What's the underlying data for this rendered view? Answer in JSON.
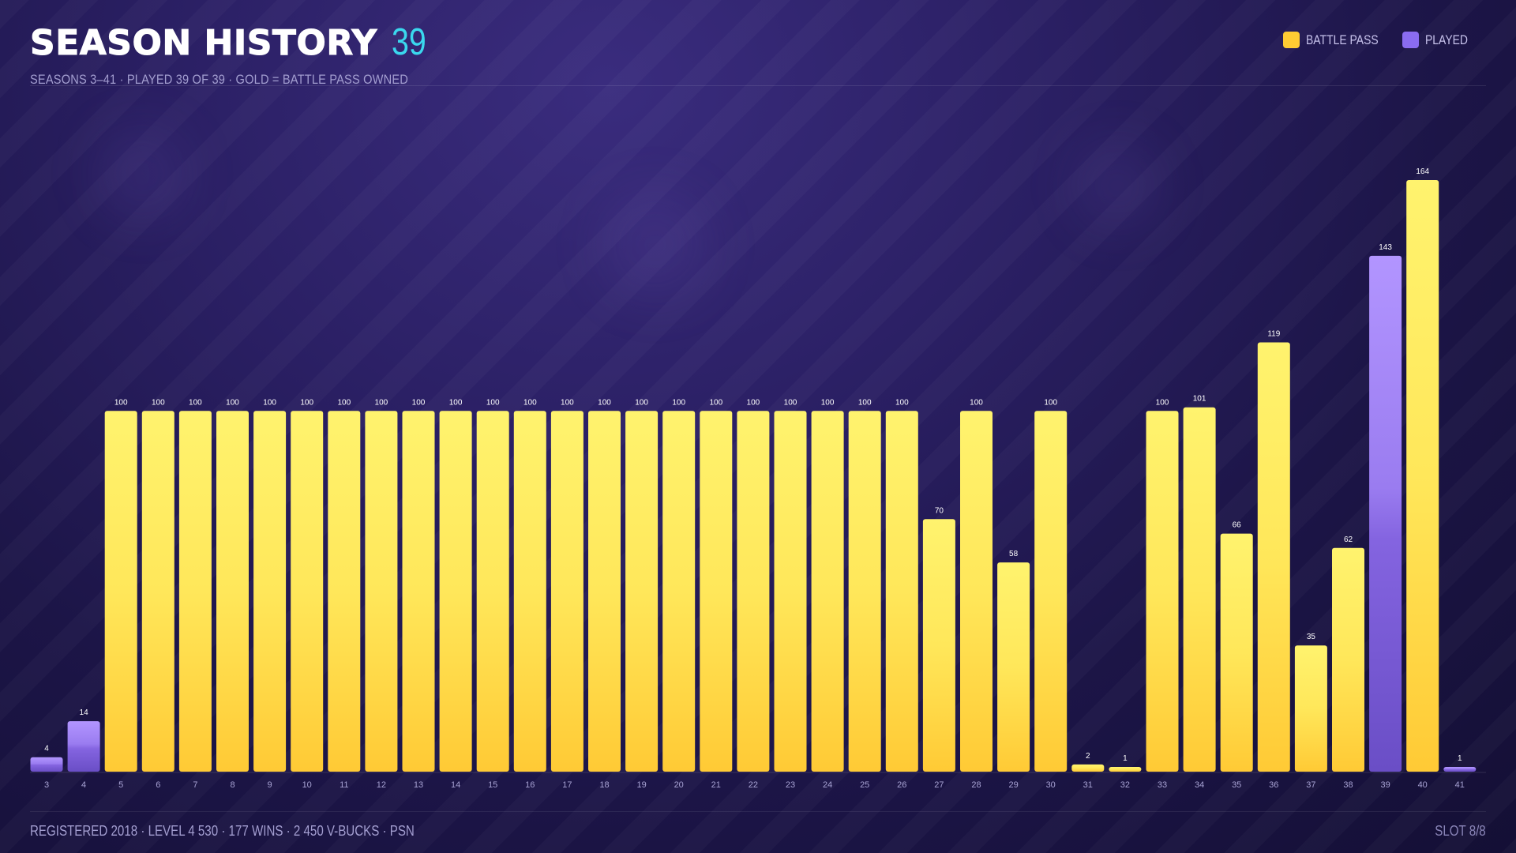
{
  "header": {
    "title": "SEASON HISTORY",
    "count": "39",
    "subtitle": "SEASONS 3–41 · PLAYED 39 OF 39 · GOLD = BATTLE PASS OWNED"
  },
  "legend": [
    {
      "label": "BATTLE PASS",
      "color": "#ffcc33"
    },
    {
      "label": "PLAYED",
      "color": "#8a6cf0"
    }
  ],
  "footer": {
    "stats": "REGISTERED 2018 · LEVEL 4 530 · 177 WINS · 2 450 V-BUCKS · PSN",
    "slot": "SLOT 8/8"
  },
  "colors": {
    "battle_pass": "#ffcc33",
    "played": "#8a6cf0",
    "accent": "#3ad8ee"
  },
  "chart_data": {
    "type": "bar",
    "categories": [
      "3",
      "4",
      "5",
      "6",
      "7",
      "8",
      "9",
      "10",
      "11",
      "12",
      "13",
      "14",
      "15",
      "16",
      "17",
      "18",
      "19",
      "20",
      "21",
      "22",
      "23",
      "24",
      "25",
      "26",
      "27",
      "28",
      "29",
      "30",
      "31",
      "32",
      "33",
      "34",
      "35",
      "36",
      "37",
      "38",
      "39",
      "40",
      "41"
    ],
    "values": [
      4,
      14,
      100,
      100,
      100,
      100,
      100,
      100,
      100,
      100,
      100,
      100,
      100,
      100,
      100,
      100,
      100,
      100,
      100,
      100,
      100,
      100,
      100,
      100,
      70,
      100,
      58,
      100,
      2,
      1,
      100,
      101,
      66,
      119,
      35,
      62,
      143,
      164,
      1
    ],
    "battle_pass": [
      false,
      false,
      true,
      true,
      true,
      true,
      true,
      true,
      true,
      true,
      true,
      true,
      true,
      true,
      true,
      true,
      true,
      true,
      true,
      true,
      true,
      true,
      true,
      true,
      true,
      true,
      true,
      true,
      true,
      true,
      true,
      true,
      true,
      true,
      true,
      true,
      false,
      true,
      false
    ],
    "ylim": [
      0,
      164
    ],
    "grid": false,
    "legend_position": "top-right"
  }
}
